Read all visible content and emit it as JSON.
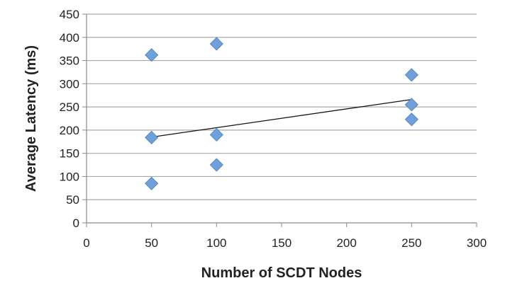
{
  "chart_data": {
    "type": "scatter",
    "title": "",
    "xlabel": "Number of SCDT Nodes",
    "ylabel": "Average Latency (ms)",
    "xlim": [
      0,
      300
    ],
    "ylim": [
      0,
      450
    ],
    "x_ticks": [
      0,
      50,
      100,
      150,
      200,
      250,
      300
    ],
    "y_ticks": [
      0,
      50,
      100,
      150,
      200,
      250,
      300,
      350,
      400,
      450
    ],
    "grid": "horizontal",
    "legend": "none",
    "series": [
      {
        "marker": "diamond",
        "color": "#6fa0dc",
        "points": [
          {
            "x": 50,
            "y": 362
          },
          {
            "x": 50,
            "y": 184
          },
          {
            "x": 50,
            "y": 85
          },
          {
            "x": 100,
            "y": 386
          },
          {
            "x": 100,
            "y": 190
          },
          {
            "x": 100,
            "y": 125
          },
          {
            "x": 250,
            "y": 319
          },
          {
            "x": 250,
            "y": 255
          },
          {
            "x": 250,
            "y": 223
          }
        ]
      }
    ],
    "trendline": {
      "type": "linear",
      "color": "#111111",
      "from": {
        "x": 50,
        "y": 185
      },
      "to": {
        "x": 250,
        "y": 266
      }
    }
  }
}
